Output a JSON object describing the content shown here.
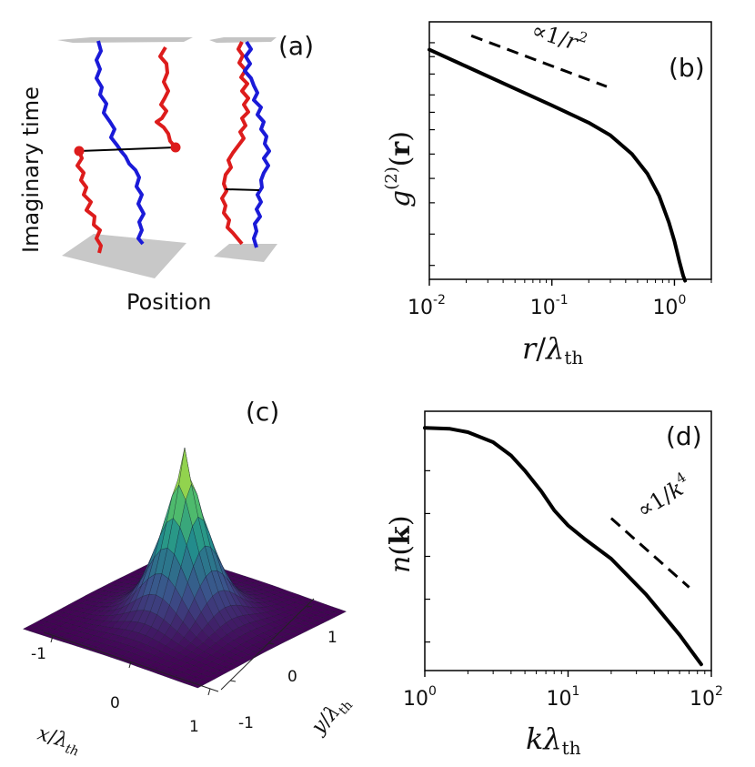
{
  "panels": {
    "a": {
      "label": "(a)",
      "ylabel": "Imaginary time",
      "xlabel": "Position"
    },
    "b": {
      "label": "(b)",
      "annotation_prefix": "∝1/",
      "annotation_var": "r",
      "annotation_power": "2"
    },
    "c": {
      "label": "(c)"
    },
    "d": {
      "label": "(d)",
      "annotation_prefix": "∝1/",
      "annotation_var": "k",
      "annotation_power": "4"
    }
  },
  "colors": {
    "worldline_red": "#dd1c1c",
    "worldline_blue": "#1a1ad8",
    "plane_gray": "#c4c4c4",
    "curve": "#000000",
    "surface_low": "#3b0f58",
    "surface_high": "#f5e21a"
  },
  "chart_data": [
    {
      "id": "b",
      "type": "line",
      "scale": "log-log",
      "title": "",
      "xlabel": "r/λth",
      "ylabel": "g(2)(r)",
      "xlim": [
        0.01,
        2.0
      ],
      "ylim_log10": [
        -3.7,
        0.0
      ],
      "xticks": [
        {
          "base": "10",
          "exp": "-2",
          "value": 0.01
        },
        {
          "base": "10",
          "exp": "-1",
          "value": 0.1
        },
        {
          "base": "10",
          "exp": "0",
          "value": 1.0
        }
      ],
      "y_ticks_log10": [
        -0.3,
        -0.5,
        -0.75,
        -1.05,
        -1.3,
        -1.55,
        -1.9,
        -2.25,
        -2.6,
        -3.05,
        -3.5
      ],
      "series": [
        {
          "name": "g2",
          "x": [
            0.01,
            0.02,
            0.05,
            0.1,
            0.2,
            0.3,
            0.45,
            0.6,
            0.75,
            0.9,
            1.0,
            1.1,
            1.18,
            1.22
          ],
          "log10y": [
            -0.4,
            -0.64,
            -0.96,
            -1.2,
            -1.45,
            -1.63,
            -1.9,
            -2.18,
            -2.5,
            -2.88,
            -3.15,
            -3.45,
            -3.65,
            -3.72
          ]
        }
      ],
      "reference": {
        "label": "∝1/r2",
        "x": [
          0.022,
          0.28
        ],
        "log10y": [
          -0.2,
          -0.93
        ]
      }
    },
    {
      "id": "d",
      "type": "line",
      "scale": "log-log",
      "title": "",
      "xlabel": "kλth",
      "ylabel": "n(k)",
      "xlim": [
        1.0,
        100.0
      ],
      "ylim_log10": [
        -5.1,
        0.35
      ],
      "xticks": [
        {
          "base": "10",
          "exp": "0",
          "value": 1.0
        },
        {
          "base": "10",
          "exp": "1",
          "value": 10.0
        },
        {
          "base": "10",
          "exp": "2",
          "value": 100.0
        }
      ],
      "y_ticks_log10": [
        -0.9,
        -1.8,
        -2.7,
        -3.6,
        -4.5
      ],
      "series": [
        {
          "name": "nk",
          "x": [
            1.0,
            1.5,
            2.0,
            3.0,
            4.0,
            5.0,
            6.5,
            8.0,
            10.0,
            13.0,
            20.0,
            35.0,
            60.0,
            85.0
          ],
          "log10y": [
            0.0,
            -0.02,
            -0.09,
            -0.3,
            -0.58,
            -0.9,
            -1.33,
            -1.73,
            -2.05,
            -2.33,
            -2.75,
            -3.5,
            -4.35,
            -4.97
          ]
        }
      ],
      "reference": {
        "label": "∝1/k4",
        "x": [
          20.0,
          70.0
        ],
        "log10y": [
          -1.9,
          -3.35
        ]
      }
    },
    {
      "id": "c",
      "type": "surface",
      "title": "",
      "xlabel": "x/λth",
      "ylabel": "y/λth",
      "xticks": [
        "-1",
        "0",
        "1"
      ],
      "yticks": [
        "-1",
        "0",
        "1"
      ],
      "xlim": [
        -1.2,
        1.2
      ],
      "ylim": [
        -1.2,
        1.2
      ],
      "grid_n": 26,
      "function": "gaussian_cusp"
    }
  ]
}
